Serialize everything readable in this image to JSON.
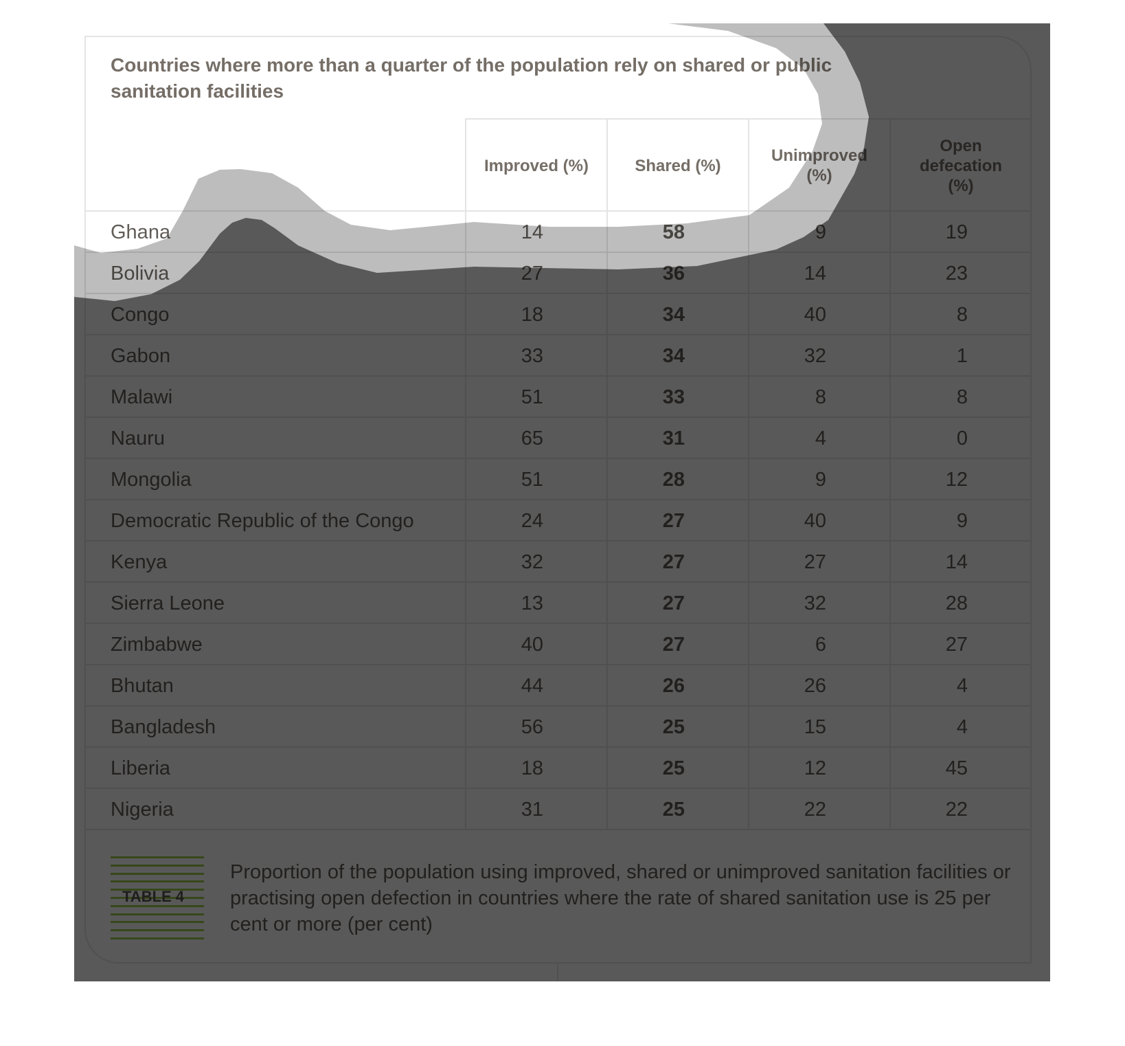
{
  "title": "Countries where more than a quarter of the population rely on shared or public sanitation facilities",
  "columns": [
    {
      "line1": "Improved (%)",
      "line2": "",
      "line3": ""
    },
    {
      "line1": "Shared (%)",
      "line2": "",
      "line3": ""
    },
    {
      "line1": "Unimproved",
      "line2": "(%)",
      "line3": ""
    },
    {
      "line1": "Open",
      "line2": "defecation",
      "line3": "(%)"
    }
  ],
  "rows": [
    {
      "country": "Ghana",
      "improved": "14",
      "shared": "58",
      "unimproved": "9",
      "open": "19"
    },
    {
      "country": "Bolivia",
      "improved": "27",
      "shared": "36",
      "unimproved": "14",
      "open": "23"
    },
    {
      "country": "Congo",
      "improved": "18",
      "shared": "34",
      "unimproved": "40",
      "open": "8"
    },
    {
      "country": "Gabon",
      "improved": "33",
      "shared": "34",
      "unimproved": "32",
      "open": "1"
    },
    {
      "country": "Malawi",
      "improved": "51",
      "shared": "33",
      "unimproved": "8",
      "open": "8"
    },
    {
      "country": "Nauru",
      "improved": "65",
      "shared": "31",
      "unimproved": "4",
      "open": "0"
    },
    {
      "country": "Mongolia",
      "improved": "51",
      "shared": "28",
      "unimproved": "9",
      "open": "12"
    },
    {
      "country": "Democratic Republic of the Congo",
      "improved": "24",
      "shared": "27",
      "unimproved": "40",
      "open": "9"
    },
    {
      "country": "Kenya",
      "improved": "32",
      "shared": "27",
      "unimproved": "27",
      "open": "14"
    },
    {
      "country": "Sierra Leone",
      "improved": "13",
      "shared": "27",
      "unimproved": "32",
      "open": "28"
    },
    {
      "country": "Zimbabwe",
      "improved": "40",
      "shared": "27",
      "unimproved": "6",
      "open": "27"
    },
    {
      "country": "Bhutan",
      "improved": "44",
      "shared": "26",
      "unimproved": "26",
      "open": "4"
    },
    {
      "country": "Bangladesh",
      "improved": "56",
      "shared": "25",
      "unimproved": "15",
      "open": "4"
    },
    {
      "country": "Liberia",
      "improved": "18",
      "shared": "25",
      "unimproved": "12",
      "open": "45"
    },
    {
      "country": "Nigeria",
      "improved": "31",
      "shared": "25",
      "unimproved": "22",
      "open": "22"
    }
  ],
  "footer": {
    "table_label": "TABLE 4",
    "caption": "Proportion of the population using improved, shared or unimproved sanitation facilities or practising open defection in countries where the rate of shared sanitation use is 25 per cent or more (per cent)"
  },
  "colors": {
    "stripe": "#9acd4a",
    "overlay_dark": "rgba(0,0,0,0.65)",
    "overlay_halo": "rgba(0,0,0,0.26)"
  }
}
